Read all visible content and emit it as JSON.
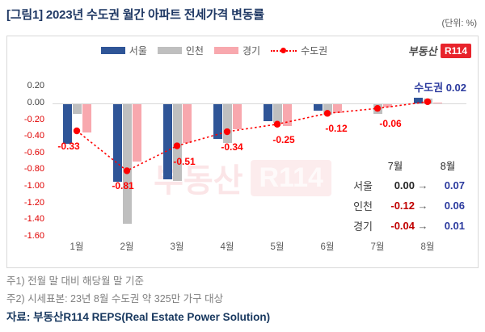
{
  "title": "[그림1] 2023년 수도권 월간 아파트 전세가격 변동률",
  "unit_label": "(단위: %)",
  "logo": {
    "prefix": "부동산",
    "badge": "R114"
  },
  "watermark": {
    "prefix": "부동산",
    "badge": "R114"
  },
  "legend": [
    {
      "label": "서울",
      "type": "bar",
      "color": "#2F5597"
    },
    {
      "label": "인천",
      "type": "bar",
      "color": "#BFBFBF"
    },
    {
      "label": "경기",
      "type": "bar",
      "color": "#F8A8AE"
    },
    {
      "label": "수도권",
      "type": "line",
      "color": "#FF0000"
    }
  ],
  "chart_data": {
    "type": "bar",
    "subtype": "grouped bars with dotted line overlay",
    "categories": [
      "1월",
      "2월",
      "3월",
      "4월",
      "5월",
      "6월",
      "7월",
      "8월"
    ],
    "series": [
      {
        "name": "서울",
        "type": "bar",
        "color": "#2F5597",
        "values": [
          -0.48,
          -0.93,
          -0.9,
          -0.42,
          -0.2,
          -0.08,
          0.0,
          0.07
        ]
      },
      {
        "name": "인천",
        "type": "bar",
        "color": "#BFBFBF",
        "values": [
          -0.12,
          -1.44,
          -0.92,
          -0.47,
          -0.22,
          -0.13,
          -0.12,
          0.06
        ]
      },
      {
        "name": "경기",
        "type": "bar",
        "color": "#F8A8AE",
        "values": [
          -0.34,
          -0.69,
          -0.47,
          -0.3,
          -0.26,
          -0.11,
          -0.04,
          0.01
        ]
      },
      {
        "name": "수도권",
        "type": "line",
        "color": "#FF0000",
        "line_style": "dotted",
        "marker": "circle",
        "values": [
          -0.33,
          -0.81,
          -0.51,
          -0.34,
          -0.25,
          -0.12,
          -0.06,
          0.02
        ],
        "labeled": true
      }
    ],
    "yticks": [
      0.2,
      0.0,
      -0.2,
      -0.4,
      -0.6,
      -0.8,
      -1.0,
      -1.2,
      -1.4,
      -1.6
    ],
    "ylim": [
      -1.6,
      0.2
    ],
    "unit": "%",
    "grid": "zero-line only",
    "legend_position": "top-center",
    "last_point_label": "수도권 0.02",
    "tick_colors": {
      "non_negative": "#404040",
      "negative": "#E00000"
    }
  },
  "annotation_table": {
    "col_headers": [
      "7월",
      "8월"
    ],
    "arrow": "→",
    "rows": [
      {
        "label": "서울",
        "jul": "0.00",
        "aug": "0.07"
      },
      {
        "label": "인천",
        "jul": "-0.12",
        "aug": "0.06"
      },
      {
        "label": "경기",
        "jul": "-0.04",
        "aug": "0.01"
      }
    ]
  },
  "footnotes": [
    "주1) 전월 말 대비 해당월 말 기준",
    "주2) 시세표본: 23년 8월 수도권 약 325만 가구 대상"
  ],
  "source": "자료: 부동산R114 REPS(Real Estate Power Solution)",
  "colors": {
    "title": "#1F3864",
    "seoul_bar": "#2F5597",
    "incheon_bar": "#BFBFBF",
    "gyeonggi_bar": "#F8A8AE",
    "line": "#FF0000",
    "table_negative": "#C00000",
    "table_positive": "#2B3A9E",
    "logo_badge_bg": "#E8242C",
    "source_text": "#17375E"
  }
}
